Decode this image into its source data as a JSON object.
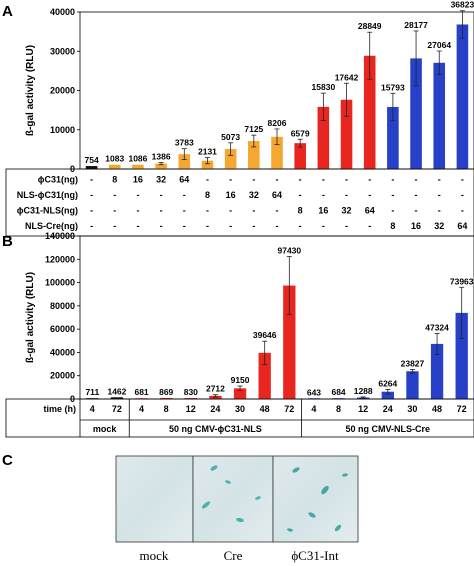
{
  "panels": {
    "a": "A",
    "b": "B",
    "c": "C"
  },
  "colors": {
    "black": "#111111",
    "orange": "#f4a832",
    "red": "#e8261f",
    "blue": "#2740c8"
  },
  "chart_data": [
    {
      "type": "bar",
      "panel": "A",
      "ylabel": "ß-gal activity (RLU)",
      "ylim": [
        0,
        40000
      ],
      "yticks": [
        "0",
        "10000",
        "20000",
        "30000",
        "40000"
      ],
      "yticks_values": [
        0,
        10000,
        20000,
        30000,
        40000
      ],
      "values": [
        754,
        1083,
        1086,
        1386,
        3783,
        2131,
        5073,
        7125,
        8206,
        6579,
        15830,
        17642,
        28849,
        15793,
        28177,
        27064,
        36823
      ],
      "labels": [
        "754",
        "1083",
        "1086",
        "1386",
        "3783",
        "2131",
        "5073",
        "7125",
        "8206",
        "6579",
        "15830",
        "17642",
        "28849",
        "15793",
        "28177",
        "27064",
        "36823"
      ],
      "errors": [
        0,
        0,
        0,
        300,
        1400,
        800,
        1600,
        1500,
        2000,
        1000,
        3500,
        4200,
        6000,
        3500,
        7000,
        3000,
        3500
      ],
      "colors": [
        "black",
        "orange",
        "orange",
        "orange",
        "orange",
        "orange",
        "orange",
        "orange",
        "orange",
        "red",
        "red",
        "red",
        "red",
        "blue",
        "blue",
        "blue",
        "blue"
      ],
      "table": [
        {
          "label": "ϕC31(ng)",
          "cells": [
            "-",
            "8",
            "16",
            "32",
            "64",
            "-",
            "-",
            "-",
            "-",
            "-",
            "-",
            "-",
            "-",
            "-",
            "-",
            "-",
            "-"
          ]
        },
        {
          "label": "NLS-ϕC31(ng)",
          "cells": [
            "-",
            "-",
            "-",
            "-",
            "-",
            "8",
            "16",
            "32",
            "64",
            "-",
            "-",
            "-",
            "-",
            "-",
            "-",
            "-",
            "-"
          ]
        },
        {
          "label": "ϕC31-NLS(ng)",
          "cells": [
            "-",
            "-",
            "-",
            "-",
            "-",
            "-",
            "-",
            "-",
            "-",
            "8",
            "16",
            "32",
            "64",
            "-",
            "-",
            "-",
            "-"
          ]
        },
        {
          "label": "NLS-Cre(ng)",
          "cells": [
            "-",
            "-",
            "-",
            "-",
            "-",
            "-",
            "-",
            "-",
            "-",
            "-",
            "-",
            "-",
            "-",
            "8",
            "16",
            "32",
            "64"
          ]
        }
      ]
    },
    {
      "type": "bar",
      "panel": "B",
      "ylabel": "ß-gal activity (RLU)",
      "ylim": [
        0,
        140000
      ],
      "yticks": [
        "0",
        "20000",
        "40000",
        "60000",
        "80000",
        "100000",
        "120000",
        "140000"
      ],
      "yticks_values": [
        0,
        20000,
        40000,
        60000,
        80000,
        100000,
        120000,
        140000
      ],
      "values": [
        711,
        1462,
        681,
        869,
        830,
        2712,
        9150,
        39646,
        97430,
        643,
        684,
        1288,
        6264,
        23827,
        47324,
        73963
      ],
      "labels": [
        "711",
        "1462",
        "681",
        "869",
        "830",
        "2712",
        "9150",
        "39646",
        "97430",
        "643",
        "684",
        "1288",
        "6264",
        "23827",
        "47324",
        "73963"
      ],
      "errors": [
        0,
        0,
        0,
        0,
        0,
        1000,
        2000,
        10000,
        25000,
        0,
        0,
        500,
        2000,
        1500,
        9000,
        22000
      ],
      "colors": [
        "black",
        "black",
        "red",
        "red",
        "red",
        "red",
        "red",
        "red",
        "red",
        "blue",
        "blue",
        "blue",
        "blue",
        "blue",
        "blue",
        "blue"
      ],
      "time_label": "time (h)",
      "times": [
        "4",
        "72",
        "4",
        "8",
        "12",
        "24",
        "30",
        "48",
        "72",
        "4",
        "8",
        "12",
        "24",
        "30",
        "48",
        "72"
      ],
      "groups": [
        {
          "label": "mock",
          "span": 2
        },
        {
          "label": "50 ng CMV-ϕC31-NLS",
          "span": 7
        },
        {
          "label": "50 ng CMV-NLS-Cre",
          "span": 7
        }
      ]
    }
  ],
  "panel_c": {
    "labels": [
      "mock",
      "Cre",
      "ϕC31-Int"
    ]
  }
}
